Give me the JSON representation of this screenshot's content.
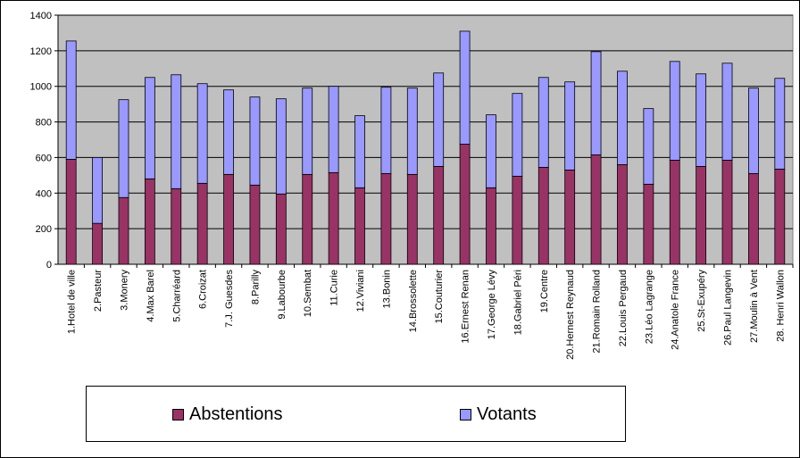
{
  "chart_data": {
    "type": "bar",
    "stacked": true,
    "categories": [
      "1.Hotel de ville",
      "2.Pasteur",
      "3.Monery",
      "4.Max Barel",
      "5.Charréard",
      "6.Croizat",
      "7.J. Guesdes",
      "8.Parilly",
      "9.Labourbe",
      "10.Sembat",
      "11.Curie",
      "12.Viviani",
      "13.Bonin",
      "14.Brossolette",
      "15.Couturier",
      "16.Ernest Renan",
      "17.George Lévy",
      "18.Gabriel Péri",
      "19.Centre",
      "20.Hernest Reynaud",
      "21.Romain Rolland",
      "22.Louis Pergaud",
      "23.Léo Lagrange",
      "24.Anatole France",
      "25.St-Exupéry",
      "26.Paul Langevin",
      "27.Moulin à Vent",
      "28. Henri Wallon"
    ],
    "series": [
      {
        "name": "Abstentions",
        "color": "#993366",
        "values": [
          590,
          230,
          375,
          480,
          425,
          455,
          505,
          445,
          395,
          505,
          515,
          430,
          510,
          505,
          550,
          675,
          430,
          495,
          545,
          530,
          615,
          560,
          450,
          585,
          550,
          585,
          510,
          535
        ]
      },
      {
        "name": "Votants",
        "color": "#9999ff",
        "values": [
          665,
          370,
          550,
          570,
          640,
          560,
          475,
          495,
          535,
          485,
          485,
          405,
          485,
          485,
          525,
          635,
          410,
          465,
          505,
          495,
          580,
          525,
          425,
          555,
          520,
          545,
          480,
          510
        ]
      }
    ],
    "ylim": [
      0,
      1400
    ],
    "yticks": [
      0,
      200,
      400,
      600,
      800,
      1000,
      1200,
      1400
    ],
    "grid": true,
    "legend_position": "bottom"
  }
}
